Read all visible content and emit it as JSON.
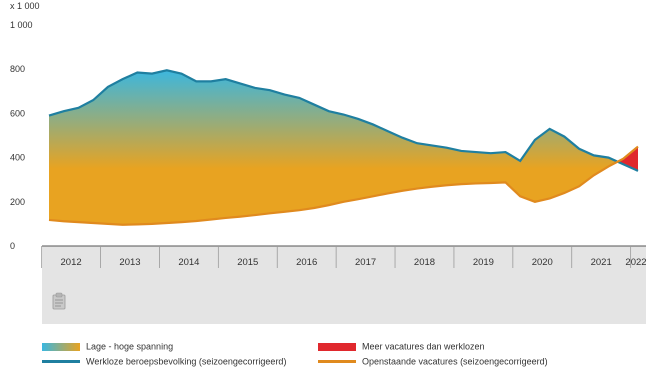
{
  "chart_data": {
    "type": "area",
    "unit_label": "x 1 000",
    "y_ticks": [
      0,
      200,
      400,
      600,
      800,
      1000
    ],
    "y_tick_labels": [
      "0",
      "200",
      "400",
      "600",
      "800",
      "1 000"
    ],
    "ylim": [
      0,
      1000
    ],
    "x_labels": [
      "2012",
      "2013",
      "2014",
      "2015",
      "2016",
      "2017",
      "2018",
      "2019",
      "2020",
      "2021",
      "2022"
    ],
    "x_quarters": [
      "2012Q1",
      "2012Q2",
      "2012Q3",
      "2012Q4",
      "2013Q1",
      "2013Q2",
      "2013Q3",
      "2013Q4",
      "2014Q1",
      "2014Q2",
      "2014Q3",
      "2014Q4",
      "2015Q1",
      "2015Q2",
      "2015Q3",
      "2015Q4",
      "2016Q1",
      "2016Q2",
      "2016Q3",
      "2016Q4",
      "2017Q1",
      "2017Q2",
      "2017Q3",
      "2017Q4",
      "2018Q1",
      "2018Q2",
      "2018Q3",
      "2018Q4",
      "2019Q1",
      "2019Q2",
      "2019Q3",
      "2019Q4",
      "2020Q1",
      "2020Q2",
      "2020Q3",
      "2020Q4",
      "2021Q1",
      "2021Q2",
      "2021Q3",
      "2021Q4",
      "2022Q1"
    ],
    "series": [
      {
        "name": "Werkloze beroepsbevolking (seizoengecorrigeerd)",
        "color": "#1f7fa0",
        "values": [
          590,
          610,
          625,
          660,
          720,
          755,
          785,
          780,
          795,
          780,
          745,
          745,
          755,
          735,
          715,
          705,
          685,
          670,
          640,
          610,
          595,
          575,
          550,
          520,
          490,
          465,
          455,
          445,
          430,
          425,
          420,
          425,
          385,
          480,
          530,
          495,
          440,
          410,
          400,
          370,
          340
        ]
      },
      {
        "name": "Openstaande vacatures (seizoengecorrigeerd)",
        "color": "#e08a1e",
        "values": [
          118,
          112,
          108,
          104,
          100,
          96,
          98,
          100,
          104,
          108,
          113,
          120,
          127,
          133,
          140,
          148,
          155,
          162,
          172,
          185,
          200,
          212,
          225,
          238,
          250,
          260,
          268,
          275,
          280,
          283,
          285,
          288,
          225,
          200,
          215,
          240,
          270,
          320,
          360,
          395,
          450
        ]
      }
    ],
    "legend": [
      {
        "label": "Lage - hoge spanning",
        "kind": "gradient"
      },
      {
        "label": "Meer vacatures dan werklozen",
        "kind": "fill",
        "color": "#e0282d"
      },
      {
        "label": "Werkloze beroepsbevolking (seizoengecorrigeerd)",
        "kind": "line",
        "color": "#1f7fa0"
      },
      {
        "label": "Openstaande vacatures (seizoengecorrigeerd)",
        "kind": "line",
        "color": "#e08a1e"
      }
    ],
    "legend_position": "bottom",
    "grid": false
  },
  "colors": {
    "tension_low": "#3ab7e0",
    "tension_high": "#e8a321",
    "band_background": "#e4e4e4",
    "axis": "#555555"
  },
  "icons": {
    "chart_icon": "clipboard-icon"
  }
}
